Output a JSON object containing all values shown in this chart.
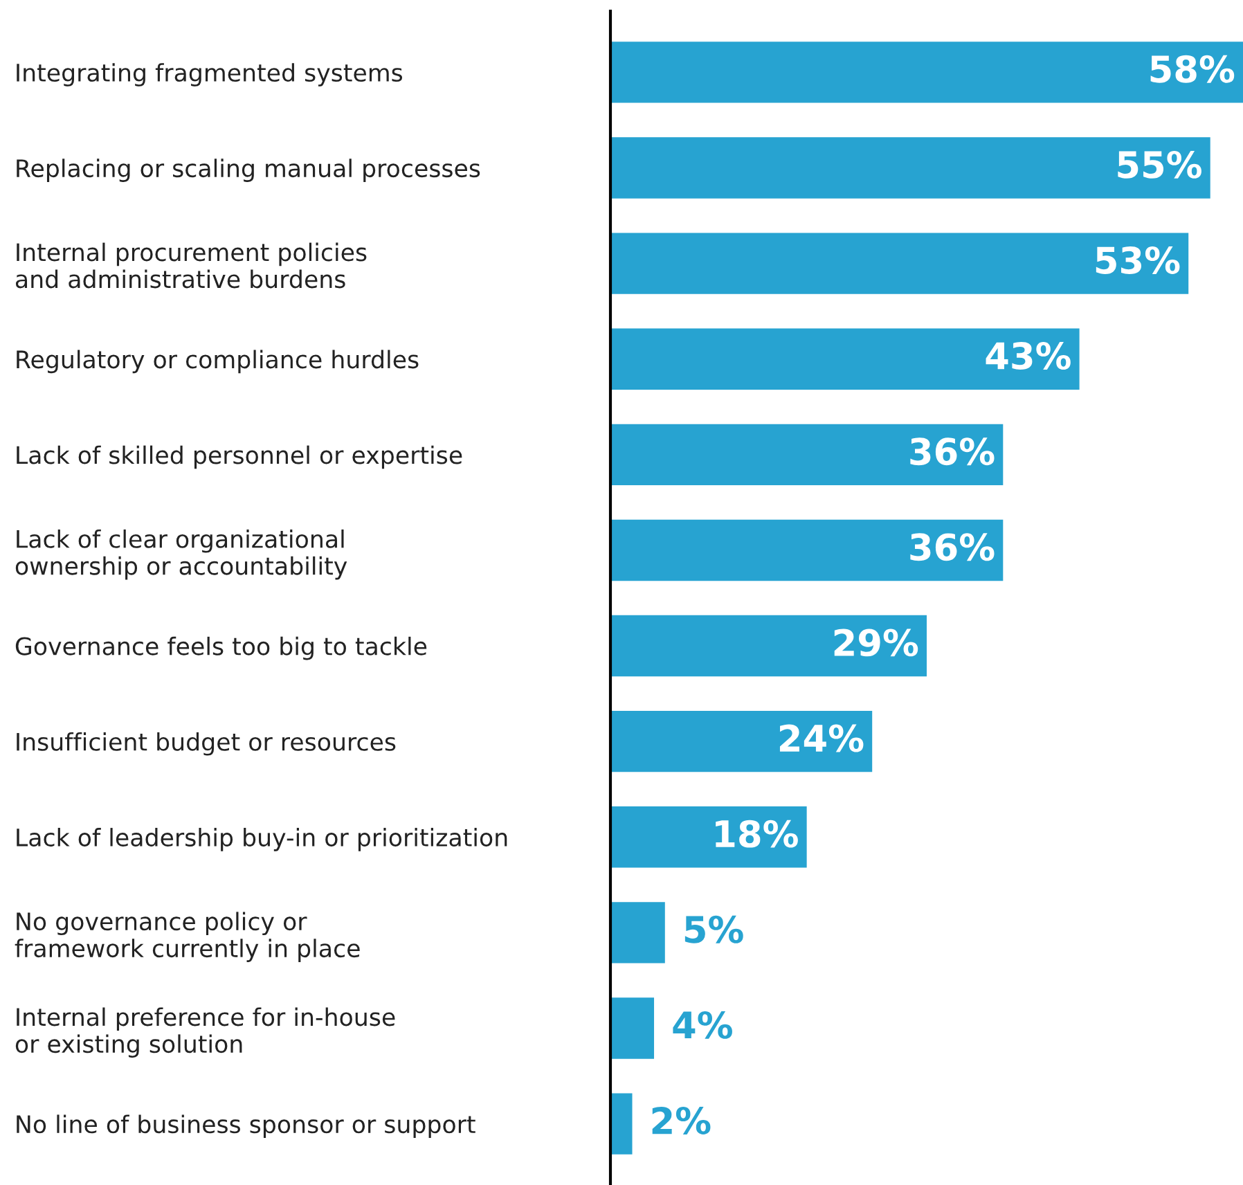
{
  "chart_data": {
    "type": "bar",
    "orientation": "horizontal",
    "categories": [
      "Integrating fragmented systems",
      "Replacing or scaling manual processes",
      "Internal procurement policies\nand administrative burdens",
      "Regulatory or compliance hurdles",
      "Lack of skilled personnel or expertise",
      "Lack of clear organizational\nownership or accountability",
      "Governance feels too big to tackle",
      "Insufficient budget or resources",
      "Lack of leadership buy-in or prioritization",
      "No governance policy or\nframework currently in place",
      "Internal preference for in-house\nor existing solution",
      "No line of business sponsor or support"
    ],
    "values": [
      58,
      55,
      53,
      43,
      36,
      36,
      29,
      24,
      18,
      5,
      4,
      2
    ],
    "value_labels": [
      "58%",
      "55%",
      "53%",
      "43%",
      "36%",
      "36%",
      "29%",
      "24%",
      "18%",
      "5%",
      "4%",
      "2%"
    ],
    "color": "#27a3d1",
    "grid": false,
    "legend": false
  }
}
